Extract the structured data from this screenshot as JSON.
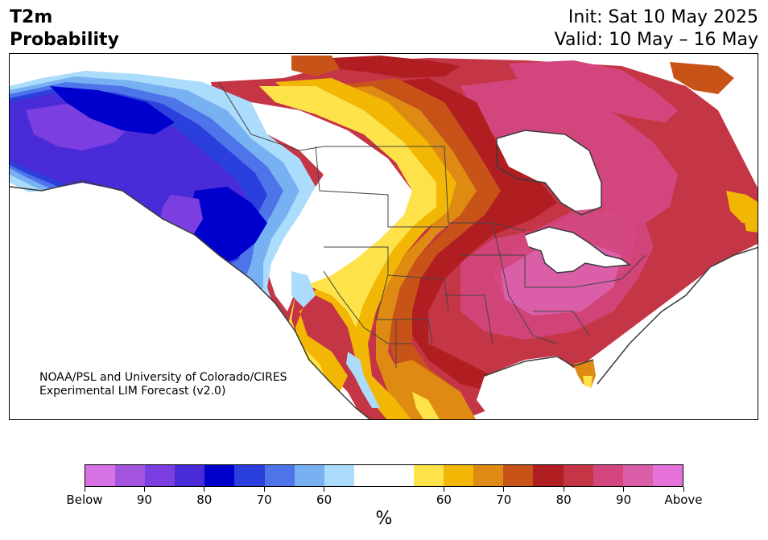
{
  "title": {
    "line1": "T2m",
    "line2": "Probability"
  },
  "init": {
    "line1": "Init: Sat 10 May 2025",
    "line2": "Valid: 10 May – 16 May"
  },
  "credit": {
    "line1": "NOAA/PSL and University of Colorado/CIRES",
    "line2": "Experimental LIM Forecast (v2.0)"
  },
  "colorbar": {
    "colors": [
      "#d873e6",
      "#a455e0",
      "#7b3ee0",
      "#4a2bd8",
      "#0000cc",
      "#2a3fdc",
      "#4e74ea",
      "#78b1f2",
      "#acdcfb",
      "#ffffff",
      "#ffffff",
      "#fee24a",
      "#f2b705",
      "#de8a13",
      "#c85319",
      "#b01e22",
      "#c43546",
      "#d3467d",
      "#da5ea8",
      "#e572d8"
    ],
    "labels": [
      "Below",
      "90",
      "80",
      "70",
      "60",
      "60",
      "70",
      "80",
      "90",
      "Above"
    ],
    "units": "%"
  },
  "map": {
    "colors": {
      "ocean": "#ffffff",
      "above_dark": "#c43546",
      "above_pink": "#d3467d",
      "above_magenta": "#da5ea8",
      "above_red": "#b01e22",
      "above_orange": "#c85319",
      "above_lorange": "#de8a13",
      "above_gold": "#f2b705",
      "above_yellow": "#fee24a",
      "below_light": "#acdcfb",
      "below_sky": "#78b1f2",
      "below_mid": "#4e74ea",
      "below_blue": "#2a3fdc",
      "below_deep": "#0000cc",
      "below_indigo": "#4a2bd8",
      "below_violet": "#7b3ee0",
      "border": "#444444"
    }
  }
}
